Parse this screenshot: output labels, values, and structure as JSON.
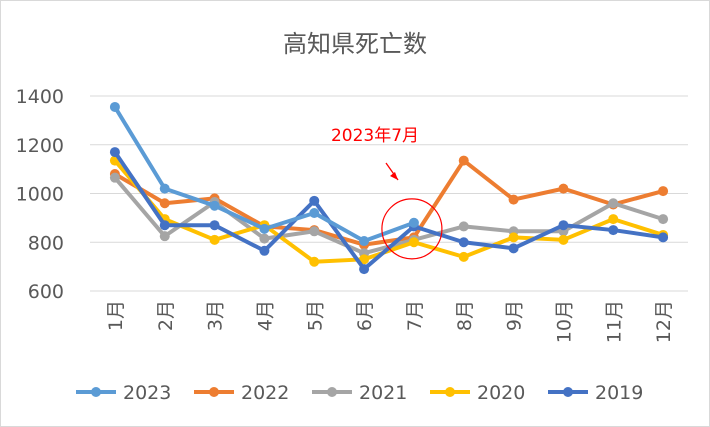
{
  "chart_data": {
    "type": "line",
    "title": "高知県死亡数",
    "xlabel": "",
    "ylabel": "",
    "categories": [
      "1月",
      "2月",
      "3月",
      "4月",
      "5月",
      "6月",
      "7月",
      "8月",
      "9月",
      "10月",
      "11月",
      "12月"
    ],
    "ylim": [
      600,
      1400
    ],
    "yticks": [
      600,
      800,
      1000,
      1200,
      1400
    ],
    "grid": true,
    "legend_position": "bottom",
    "series": [
      {
        "name": "2022",
        "color": "#ED7D31",
        "values": [
          1080,
          960,
          980,
          865,
          850,
          790,
          820,
          1135,
          975,
          1020,
          955,
          1010
        ]
      },
      {
        "name": "2021",
        "color": "#A5A5A5",
        "values": [
          1065,
          825,
          965,
          815,
          845,
          755,
          810,
          865,
          845,
          845,
          960,
          895
        ]
      },
      {
        "name": "2020",
        "color": "#FFC000",
        "values": [
          1135,
          895,
          810,
          870,
          720,
          730,
          800,
          740,
          820,
          810,
          895,
          830
        ]
      },
      {
        "name": "2019",
        "color": "#4472C4",
        "values": [
          1170,
          870,
          870,
          765,
          970,
          690,
          865,
          800,
          775,
          870,
          850,
          820
        ]
      },
      {
        "name": "2023",
        "color": "#5B9BD5",
        "values": [
          1355,
          1020,
          950,
          855,
          920,
          805,
          880,
          null,
          null,
          null,
          null,
          null
        ]
      }
    ],
    "legend_order": [
      "2023",
      "2022",
      "2021",
      "2020",
      "2019"
    ],
    "annotation": {
      "text": "2023年7月",
      "color": "#FF0000",
      "category": "7月",
      "value": 855
    }
  }
}
